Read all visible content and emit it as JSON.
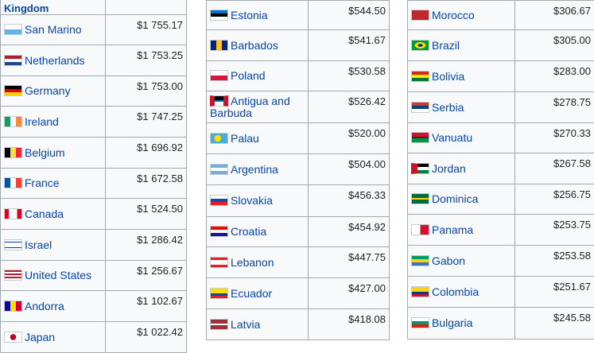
{
  "columns": [
    {
      "top_offset": -14,
      "rows": [
        {
          "name": "Kingdom",
          "value": "",
          "icon": "uk-flag-icon"
        },
        {
          "name": "San Marino",
          "value": "$1 755.17",
          "icon": "san-marino-flag-icon"
        },
        {
          "name": "Netherlands",
          "value": "$1 753.25",
          "icon": "netherlands-flag-icon"
        },
        {
          "name": "Germany",
          "value": "$1 753.00",
          "icon": "germany-flag-icon"
        },
        {
          "name": "Ireland",
          "value": "$1 747.25",
          "icon": "ireland-flag-icon"
        },
        {
          "name": "Belgium",
          "value": "$1 696.92",
          "icon": "belgium-flag-icon"
        },
        {
          "name": "France",
          "value": "$1 672.58",
          "icon": "france-flag-icon"
        },
        {
          "name": "Canada",
          "value": "$1 524.50",
          "icon": "canada-flag-icon"
        },
        {
          "name": "Israel",
          "value": "$1 286.42",
          "icon": "israel-flag-icon"
        },
        {
          "name": "United States",
          "value": "$1 256.67",
          "icon": "usa-flag-icon"
        },
        {
          "name": "Andorra",
          "value": "$1 102.67",
          "icon": "andorra-flag-icon"
        },
        {
          "name": "Japan",
          "value": "$1 022.42",
          "icon": "japan-flag-icon"
        }
      ]
    },
    {
      "top_offset": 0,
      "rows": [
        {
          "name": "Estonia",
          "value": "$544.50",
          "icon": "estonia-flag-icon"
        },
        {
          "name": "Barbados",
          "value": "$541.67",
          "icon": "barbados-flag-icon"
        },
        {
          "name": "Poland",
          "value": "$530.58",
          "icon": "poland-flag-icon"
        },
        {
          "name": "Antigua and Barbuda",
          "value": "$526.42",
          "icon": "antigua-flag-icon"
        },
        {
          "name": "Palau",
          "value": "$520.00",
          "icon": "palau-flag-icon"
        },
        {
          "name": "Argentina",
          "value": "$504.00",
          "icon": "argentina-flag-icon"
        },
        {
          "name": "Slovakia",
          "value": "$456.33",
          "icon": "slovakia-flag-icon"
        },
        {
          "name": "Croatia",
          "value": "$454.92",
          "icon": "croatia-flag-icon"
        },
        {
          "name": "Lebanon",
          "value": "$447.75",
          "icon": "lebanon-flag-icon"
        },
        {
          "name": "Ecuador",
          "value": "$427.00",
          "icon": "ecuador-flag-icon"
        },
        {
          "name": "Latvia",
          "value": "$418.08",
          "icon": "latvia-flag-icon"
        }
      ]
    },
    {
      "top_offset": 0,
      "rows": [
        {
          "name": "Morocco",
          "value": "$306.67",
          "icon": "morocco-flag-icon"
        },
        {
          "name": "Brazil",
          "value": "$305.00",
          "icon": "brazil-flag-icon"
        },
        {
          "name": "Bolivia",
          "value": "$283.00",
          "icon": "bolivia-flag-icon"
        },
        {
          "name": "Serbia",
          "value": "$278.75",
          "icon": "serbia-flag-icon"
        },
        {
          "name": "Vanuatu",
          "value": "$270.33",
          "icon": "vanuatu-flag-icon"
        },
        {
          "name": "Jordan",
          "value": "$267.58",
          "icon": "jordan-flag-icon"
        },
        {
          "name": "Dominica",
          "value": "$256.75",
          "icon": "dominica-flag-icon"
        },
        {
          "name": "Panama",
          "value": "$253.75",
          "icon": "panama-flag-icon"
        },
        {
          "name": "Gabon",
          "value": "$253.58",
          "icon": "gabon-flag-icon"
        },
        {
          "name": "Colombia",
          "value": "$251.67",
          "icon": "colombia-flag-icon"
        },
        {
          "name": "Bulgaria",
          "value": "$245.58",
          "icon": "bulgaria-flag-icon"
        }
      ]
    }
  ]
}
